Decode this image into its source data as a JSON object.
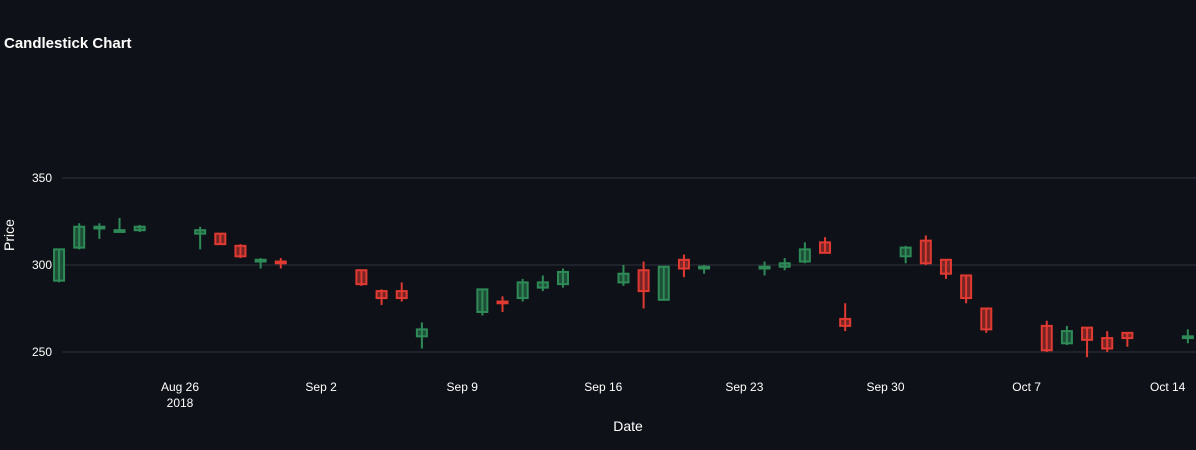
{
  "colors": {
    "background": "#0e1117",
    "grid": "#31333f",
    "increasing": "#2e8b57",
    "decreasing": "#e03a32",
    "text": "#ffffff"
  },
  "chart_data": {
    "type": "candlestick",
    "title": "Candlestick Chart",
    "xlabel": "Date",
    "ylabel": "Price",
    "grid": true,
    "ylim": [
      237,
      350
    ],
    "x_ticks": [
      {
        "date": "2018-08-26",
        "label": "Aug 26",
        "sublabel": "2018"
      },
      {
        "date": "2018-09-02",
        "label": "Sep 2"
      },
      {
        "date": "2018-09-09",
        "label": "Sep 9"
      },
      {
        "date": "2018-09-16",
        "label": "Sep 16"
      },
      {
        "date": "2018-09-23",
        "label": "Sep 23"
      },
      {
        "date": "2018-09-30",
        "label": "Sep 30"
      },
      {
        "date": "2018-10-07",
        "label": "Oct 7"
      },
      {
        "date": "2018-10-14",
        "label": "Oct 14"
      }
    ],
    "y_ticks": [
      250,
      300,
      350
    ],
    "candles": [
      {
        "date": "2018-08-20",
        "open": 291,
        "high": 309,
        "low": 290,
        "close": 309
      },
      {
        "date": "2018-08-21",
        "open": 310,
        "high": 324,
        "low": 309,
        "close": 322
      },
      {
        "date": "2018-08-22",
        "open": 321,
        "high": 324,
        "low": 315,
        "close": 322
      },
      {
        "date": "2018-08-23",
        "open": 319,
        "high": 327,
        "low": 319,
        "close": 320
      },
      {
        "date": "2018-08-24",
        "open": 320,
        "high": 323,
        "low": 319,
        "close": 322
      },
      {
        "date": "2018-08-27",
        "open": 318,
        "high": 322,
        "low": 309,
        "close": 320
      },
      {
        "date": "2018-08-28",
        "open": 318,
        "high": 318,
        "low": 312,
        "close": 312
      },
      {
        "date": "2018-08-29",
        "open": 311,
        "high": 312,
        "low": 304,
        "close": 305
      },
      {
        "date": "2018-08-30",
        "open": 302,
        "high": 304,
        "low": 298,
        "close": 303
      },
      {
        "date": "2018-08-31",
        "open": 302,
        "high": 304,
        "low": 298,
        "close": 301
      },
      {
        "date": "2018-09-04",
        "open": 297,
        "high": 297,
        "low": 288,
        "close": 289
      },
      {
        "date": "2018-09-05",
        "open": 285,
        "high": 286,
        "low": 277,
        "close": 281
      },
      {
        "date": "2018-09-06",
        "open": 285,
        "high": 290,
        "low": 279,
        "close": 281
      },
      {
        "date": "2018-09-07",
        "open": 259,
        "high": 267,
        "low": 252,
        "close": 263
      },
      {
        "date": "2018-09-10",
        "open": 273,
        "high": 286,
        "low": 271,
        "close": 286
      },
      {
        "date": "2018-09-11",
        "open": 279,
        "high": 282,
        "low": 273,
        "close": 278
      },
      {
        "date": "2018-09-12",
        "open": 281,
        "high": 292,
        "low": 279,
        "close": 290
      },
      {
        "date": "2018-09-13",
        "open": 287,
        "high": 294,
        "low": 285,
        "close": 290
      },
      {
        "date": "2018-09-14",
        "open": 289,
        "high": 298,
        "low": 287,
        "close": 296
      },
      {
        "date": "2018-09-17",
        "open": 290,
        "high": 300,
        "low": 288,
        "close": 295
      },
      {
        "date": "2018-09-18",
        "open": 297,
        "high": 302,
        "low": 275,
        "close": 285
      },
      {
        "date": "2018-09-19",
        "open": 280,
        "high": 299,
        "low": 280,
        "close": 299
      },
      {
        "date": "2018-09-20",
        "open": 303,
        "high": 306,
        "low": 293,
        "close": 298
      },
      {
        "date": "2018-09-21",
        "open": 298,
        "high": 300,
        "low": 295,
        "close": 299
      },
      {
        "date": "2018-09-24",
        "open": 298,
        "high": 302,
        "low": 294,
        "close": 299
      },
      {
        "date": "2018-09-25",
        "open": 299,
        "high": 304,
        "low": 297,
        "close": 301
      },
      {
        "date": "2018-09-26",
        "open": 302,
        "high": 313,
        "low": 301,
        "close": 309
      },
      {
        "date": "2018-09-27",
        "open": 313,
        "high": 316,
        "low": 307,
        "close": 307
      },
      {
        "date": "2018-09-28",
        "open": 269,
        "high": 278,
        "low": 262,
        "close": 265
      },
      {
        "date": "2018-10-01",
        "open": 305,
        "high": 311,
        "low": 301,
        "close": 310
      },
      {
        "date": "2018-10-02",
        "open": 314,
        "high": 317,
        "low": 300,
        "close": 301
      },
      {
        "date": "2018-10-03",
        "open": 303,
        "high": 303,
        "low": 292,
        "close": 295
      },
      {
        "date": "2018-10-04",
        "open": 294,
        "high": 294,
        "low": 278,
        "close": 281
      },
      {
        "date": "2018-10-05",
        "open": 275,
        "high": 275,
        "low": 261,
        "close": 263
      },
      {
        "date": "2018-10-08",
        "open": 265,
        "high": 268,
        "low": 250,
        "close": 251
      },
      {
        "date": "2018-10-09",
        "open": 255,
        "high": 265,
        "low": 254,
        "close": 262
      },
      {
        "date": "2018-10-10",
        "open": 264,
        "high": 264,
        "low": 247,
        "close": 257
      },
      {
        "date": "2018-10-11",
        "open": 258,
        "high": 262,
        "low": 250,
        "close": 252
      },
      {
        "date": "2018-10-12",
        "open": 261,
        "high": 261,
        "low": 253,
        "close": 258
      },
      {
        "date": "2018-10-15",
        "open": 258,
        "high": 263,
        "low": 255,
        "close": 259
      }
    ]
  }
}
